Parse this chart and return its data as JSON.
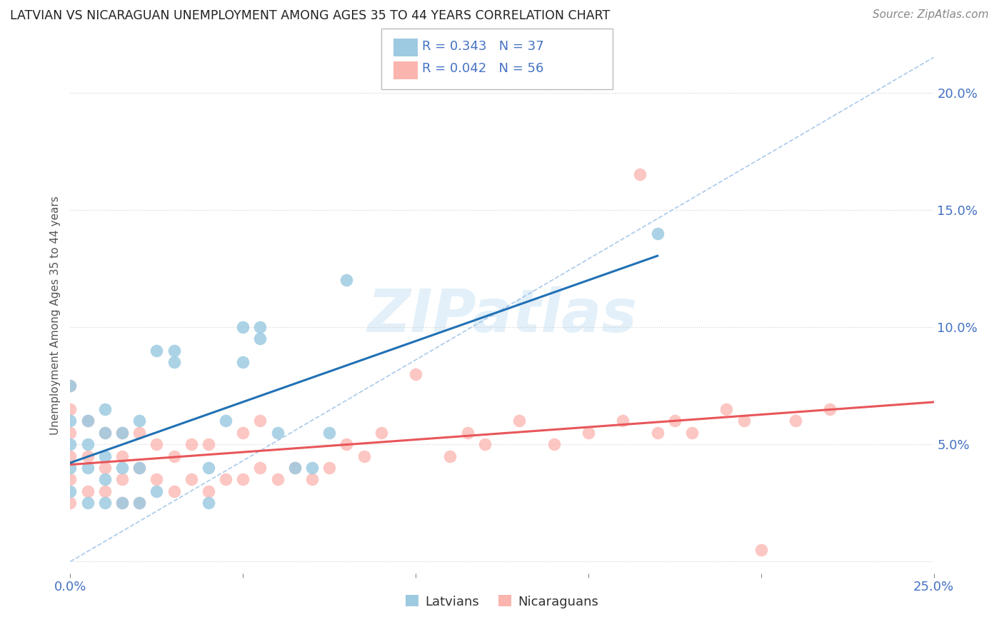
{
  "title": "LATVIAN VS NICARAGUAN UNEMPLOYMENT AMONG AGES 35 TO 44 YEARS CORRELATION CHART",
  "source": "Source: ZipAtlas.com",
  "ylabel": "Unemployment Among Ages 35 to 44 years",
  "xlim": [
    0.0,
    0.25
  ],
  "ylim": [
    -0.005,
    0.215
  ],
  "yticks": [
    0.0,
    0.05,
    0.1,
    0.15,
    0.2
  ],
  "ytick_labels": [
    "",
    "5.0%",
    "10.0%",
    "15.0%",
    "20.0%"
  ],
  "xticks": [
    0.0,
    0.05,
    0.1,
    0.15,
    0.2,
    0.25
  ],
  "xtick_labels": [
    "0.0%",
    "",
    "",
    "",
    "",
    "25.0%"
  ],
  "latvian_R": 0.343,
  "latvian_N": 37,
  "nicaraguan_R": 0.042,
  "nicaraguan_N": 56,
  "latvian_color": "#9ecae1",
  "nicaraguan_color": "#fbb4ae",
  "latvian_line_color": "#2171b5",
  "nicaraguan_line_color": "#e8565a",
  "latvian_x": [
    0.0,
    0.0,
    0.0,
    0.0,
    0.0,
    0.005,
    0.005,
    0.005,
    0.005,
    0.01,
    0.01,
    0.01,
    0.01,
    0.01,
    0.015,
    0.015,
    0.015,
    0.02,
    0.02,
    0.02,
    0.025,
    0.025,
    0.03,
    0.03,
    0.04,
    0.04,
    0.045,
    0.05,
    0.05,
    0.055,
    0.055,
    0.06,
    0.065,
    0.07,
    0.075,
    0.08,
    0.17
  ],
  "latvian_y": [
    0.03,
    0.04,
    0.05,
    0.06,
    0.075,
    0.025,
    0.04,
    0.05,
    0.06,
    0.025,
    0.035,
    0.045,
    0.055,
    0.065,
    0.025,
    0.04,
    0.055,
    0.025,
    0.04,
    0.06,
    0.03,
    0.09,
    0.085,
    0.09,
    0.025,
    0.04,
    0.06,
    0.085,
    0.1,
    0.095,
    0.1,
    0.055,
    0.04,
    0.04,
    0.055,
    0.12,
    0.14
  ],
  "nicaraguan_x": [
    0.0,
    0.0,
    0.0,
    0.0,
    0.0,
    0.0,
    0.005,
    0.005,
    0.005,
    0.01,
    0.01,
    0.01,
    0.015,
    0.015,
    0.015,
    0.015,
    0.02,
    0.02,
    0.02,
    0.025,
    0.025,
    0.03,
    0.03,
    0.035,
    0.035,
    0.04,
    0.04,
    0.045,
    0.05,
    0.05,
    0.055,
    0.055,
    0.06,
    0.065,
    0.07,
    0.075,
    0.08,
    0.085,
    0.09,
    0.1,
    0.11,
    0.115,
    0.12,
    0.13,
    0.14,
    0.15,
    0.16,
    0.165,
    0.17,
    0.175,
    0.18,
    0.19,
    0.195,
    0.2,
    0.21,
    0.22
  ],
  "nicaraguan_y": [
    0.025,
    0.035,
    0.045,
    0.055,
    0.065,
    0.075,
    0.03,
    0.045,
    0.06,
    0.03,
    0.04,
    0.055,
    0.025,
    0.035,
    0.045,
    0.055,
    0.025,
    0.04,
    0.055,
    0.035,
    0.05,
    0.03,
    0.045,
    0.035,
    0.05,
    0.03,
    0.05,
    0.035,
    0.035,
    0.055,
    0.04,
    0.06,
    0.035,
    0.04,
    0.035,
    0.04,
    0.05,
    0.045,
    0.055,
    0.08,
    0.045,
    0.055,
    0.05,
    0.06,
    0.05,
    0.055,
    0.06,
    0.165,
    0.055,
    0.06,
    0.055,
    0.065,
    0.06,
    0.005,
    0.06,
    0.065
  ]
}
